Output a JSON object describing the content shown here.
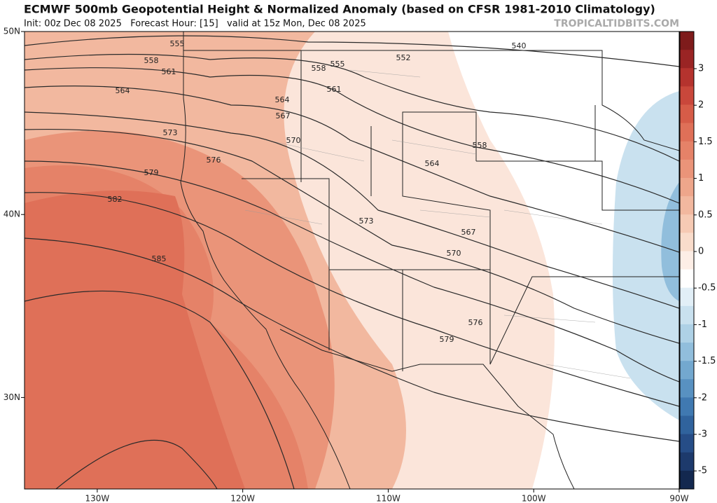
{
  "header": {
    "title": "ECMWF 500mb Geopotential Height & Normalized Anomaly (based on CFSR 1981-2010 Climatology)",
    "subtitle": "Init: 00z Dec 08 2025   Forecast Hour: [15]   valid at 15z Mon, Dec 08 2025",
    "watermark": "TROPICALTIDBITS.COM"
  },
  "map": {
    "lon_range": [
      -135,
      -90
    ],
    "lat_range": [
      25,
      50
    ],
    "lon_ticks": [
      {
        "value": -130,
        "label": "130W"
      },
      {
        "value": -120,
        "label": "120W"
      },
      {
        "value": -110,
        "label": "110W"
      },
      {
        "value": -100,
        "label": "100W"
      },
      {
        "value": -90,
        "label": "90W"
      }
    ],
    "lat_ticks": [
      {
        "value": 50,
        "label": "50N"
      },
      {
        "value": 40,
        "label": "40N"
      },
      {
        "value": 30,
        "label": "30N"
      }
    ],
    "contour_labels": [
      555,
      558,
      561,
      564,
      573,
      579,
      582,
      585,
      576,
      567,
      564,
      570,
      558,
      555,
      561,
      552,
      540,
      558,
      564,
      573,
      567,
      570,
      576,
      579
    ]
  },
  "colorbar": {
    "ticks": [
      3,
      2,
      1.5,
      1,
      0.5,
      0,
      -0.5,
      -1,
      -1.5,
      -2,
      -3,
      -5
    ],
    "colors": [
      "#7e1b1b",
      "#9a2424",
      "#b5332e",
      "#c9473b",
      "#d65c48",
      "#df7058",
      "#e58268",
      "#ea9479",
      "#eea68b",
      "#f2b89f",
      "#f6cab4",
      "#f9dccb",
      "#fdeee6",
      "#ffffff",
      "#e2eff7",
      "#c9e1ef",
      "#aed1e6",
      "#91bedc",
      "#73a8cf",
      "#5891c1",
      "#4079b1",
      "#30639d",
      "#264d87",
      "#1d3a6c",
      "#13284f"
    ]
  }
}
